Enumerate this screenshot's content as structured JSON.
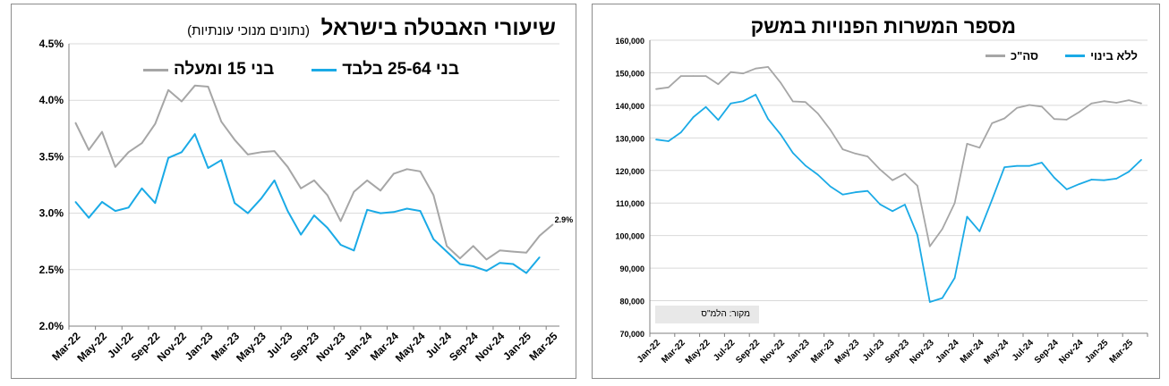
{
  "colors": {
    "total": "#a6a6a6",
    "core": "#1aaae6",
    "grid": "#d9d9d9",
    "axis": "#7f7f7f"
  },
  "left_panel": {
    "title": "שיעורי האבטלה בישראל",
    "subtitle": "(נתונים מנוכי עונתיות)",
    "end_label": "2.9%"
  },
  "right_panel": {
    "title": "מספר המשרות הפנויות במשק",
    "source": "מקור: הלמ\"ס"
  },
  "chart_data": [
    {
      "type": "line",
      "title": "שיעורי האבטלה בישראל",
      "subtitle": "(נתונים מנוכי עונתיות)",
      "ylim": [
        0.02,
        0.045
      ],
      "y_ticks": [
        "2.0%",
        "2.5%",
        "3.0%",
        "3.5%",
        "4.0%",
        "4.5%"
      ],
      "x_tick_labels": [
        "Mar-22",
        "May-22",
        "Jul-22",
        "Sep-22",
        "Nov-22",
        "Jan-23",
        "Mar-23",
        "May-23",
        "Jul-23",
        "Sep-23",
        "Nov-23",
        "Jan-24",
        "Mar-24",
        "May-24",
        "Jul-24",
        "Sep-24",
        "Nov-24",
        "Jan-25",
        "Mar-25"
      ],
      "x_tick_step": 2,
      "grid": true,
      "legend_position": "top",
      "data_label": "2.9%",
      "series": [
        {
          "name": "בני 15 ומעלה",
          "color": "#a6a6a6",
          "values": [
            0.038,
            0.0356,
            0.0372,
            0.0341,
            0.0354,
            0.0362,
            0.0379,
            0.0409,
            0.0399,
            0.0413,
            0.0412,
            0.0381,
            0.0365,
            0.0352,
            0.0354,
            0.0355,
            0.0341,
            0.0322,
            0.0329,
            0.0316,
            0.0293,
            0.0319,
            0.0329,
            0.032,
            0.0335,
            0.0339,
            0.0337,
            0.0316,
            0.0271,
            0.026,
            0.0271,
            0.0259,
            0.0267,
            0.0266,
            0.0265,
            0.028,
            0.029
          ]
        },
        {
          "name": "בני 25-64 בלבד",
          "color": "#1aaae6",
          "values": [
            0.031,
            0.0296,
            0.031,
            0.0302,
            0.0305,
            0.0322,
            0.0309,
            0.0349,
            0.0354,
            0.037,
            0.034,
            0.0347,
            0.0309,
            0.03,
            0.0313,
            0.0329,
            0.0302,
            0.0281,
            0.0298,
            0.0287,
            0.0272,
            0.0267,
            0.0303,
            0.03,
            0.0301,
            0.0304,
            0.0302,
            0.0277,
            0.0266,
            0.0255,
            0.0253,
            0.0249,
            0.0256,
            0.0255,
            0.0247,
            0.0261
          ]
        }
      ]
    },
    {
      "type": "line",
      "title": "מספר המשרות הפנויות במשק",
      "ylim": [
        70000,
        160000
      ],
      "y_ticks": [
        "70,000",
        "80,000",
        "90,000",
        "100,000",
        "110,000",
        "120,000",
        "130,000",
        "140,000",
        "150,000",
        "160,000"
      ],
      "x_tick_labels": [
        "Jan-22",
        "Mar-22",
        "May-22",
        "Jul-22",
        "Sep-22",
        "Nov-22",
        "Jan-23",
        "Mar-23",
        "May-23",
        "Jul-23",
        "Sep-23",
        "Nov-23",
        "Jan-24",
        "Mar-24",
        "May-24",
        "Jul-24",
        "Sep-24",
        "Nov-24",
        "Jan-25",
        "Mar-25"
      ],
      "x_tick_step": 2,
      "grid": true,
      "legend_position": "top-right",
      "annotation": "מקור: הלמ\"ס",
      "series": [
        {
          "name": "סה\"כ",
          "color": "#a6a6a6",
          "values": [
            145000,
            145500,
            149000,
            149000,
            149000,
            146500,
            150200,
            149800,
            151300,
            151800,
            147000,
            141200,
            141000,
            137500,
            132500,
            126500,
            125200,
            124300,
            120300,
            117000,
            119000,
            115300,
            96700,
            102000,
            110000,
            128200,
            127000,
            134500,
            136000,
            139200,
            140100,
            139600,
            135800,
            135600,
            137900,
            140600,
            141300,
            140800,
            141600,
            140600
          ]
        },
        {
          "name": "ללא בינוי",
          "color": "#1aaae6",
          "values": [
            129500,
            129000,
            131700,
            136400,
            139500,
            135500,
            140600,
            141300,
            143300,
            135800,
            131100,
            125400,
            121500,
            118700,
            115100,
            112600,
            113300,
            113700,
            109600,
            107500,
            109500,
            100200,
            79600,
            80800,
            87000,
            105800,
            101300,
            111000,
            121000,
            121400,
            121400,
            122400,
            117800,
            114200,
            115800,
            117200,
            117000,
            117500,
            119600,
            123300
          ]
        }
      ]
    }
  ]
}
